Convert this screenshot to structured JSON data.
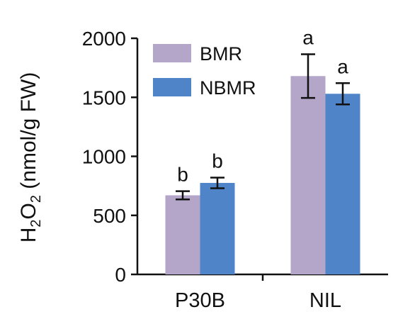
{
  "chart_data": {
    "type": "bar",
    "ylabel_parts": [
      "H",
      "2",
      "O",
      "2",
      " (nmol/g FW)"
    ],
    "categories": [
      "P30B",
      "NIL"
    ],
    "ylim": [
      0,
      2000
    ],
    "yticks": [
      0,
      500,
      1000,
      1500,
      2000
    ],
    "series": [
      {
        "name": "BMR",
        "color": "#b4a6c8",
        "values": [
          670,
          1680
        ],
        "errors": [
          35,
          185
        ],
        "letters": [
          "b",
          "a"
        ]
      },
      {
        "name": "NBMR",
        "color": "#4f84c8",
        "values": [
          775,
          1530
        ],
        "errors": [
          45,
          90
        ],
        "letters": [
          "b",
          "a"
        ]
      }
    ],
    "legend_position": "top-left",
    "grid": false
  }
}
